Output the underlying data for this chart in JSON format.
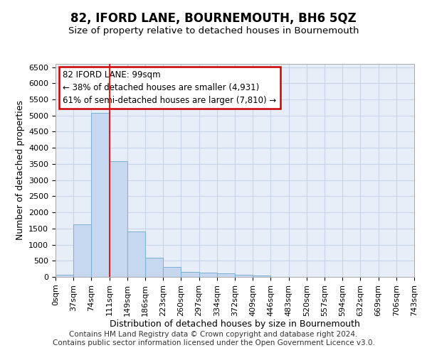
{
  "title": "82, IFORD LANE, BOURNEMOUTH, BH6 5QZ",
  "subtitle": "Size of property relative to detached houses in Bournemouth",
  "xlabel": "Distribution of detached houses by size in Bournemouth",
  "ylabel": "Number of detached properties",
  "footer_line1": "Contains HM Land Registry data © Crown copyright and database right 2024.",
  "footer_line2": "Contains public sector information licensed under the Open Government Licence v3.0.",
  "bar_values": [
    60,
    1630,
    5080,
    3580,
    1410,
    590,
    300,
    155,
    130,
    100,
    60,
    35,
    10,
    5,
    5,
    5,
    5,
    5,
    5,
    5
  ],
  "bar_color": "#c5d8ef",
  "bar_edge_color": "#7aafd4",
  "grid_color": "#c8d4e8",
  "background_color": "#e8eef8",
  "x_labels": [
    "0sqm",
    "37sqm",
    "74sqm",
    "111sqm",
    "149sqm",
    "186sqm",
    "223sqm",
    "260sqm",
    "297sqm",
    "334sqm",
    "372sqm",
    "409sqm",
    "446sqm",
    "483sqm",
    "520sqm",
    "557sqm",
    "594sqm",
    "632sqm",
    "669sqm",
    "706sqm",
    "743sqm"
  ],
  "ylim": [
    0,
    6600
  ],
  "yticks": [
    0,
    500,
    1000,
    1500,
    2000,
    2500,
    3000,
    3500,
    4000,
    4500,
    5000,
    5500,
    6000,
    6500
  ],
  "property_label": "82 IFORD LANE: 99sqm",
  "annotation_line1": "← 38% of detached houses are smaller (4,931)",
  "annotation_line2": "61% of semi-detached houses are larger (7,810) →",
  "red_line_x": 3,
  "annotation_box_color": "#ffffff",
  "annotation_box_edge": "#cc0000",
  "title_fontsize": 12,
  "subtitle_fontsize": 9.5,
  "label_fontsize": 9,
  "tick_fontsize": 8,
  "annotation_fontsize": 8.5,
  "footer_fontsize": 7.5
}
